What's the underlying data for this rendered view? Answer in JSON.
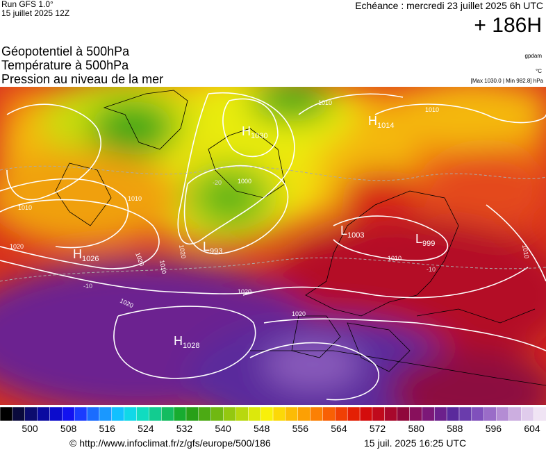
{
  "header": {
    "run_label": "Run GFS 1.0°",
    "run_date": "15 juillet 2025 12Z",
    "echeance": "Echéance : mercredi 23 juillet 2025 6h UTC",
    "lead": "+ 186H"
  },
  "fields": [
    "Géopotentiel à 500hPa",
    "Température à 500hPa",
    "Pression au niveau de la mer"
  ],
  "units": {
    "geopotential": "gpdam",
    "temperature": "°C",
    "maxmin": "[Max 1030.0 | Min 982.8] hPa"
  },
  "map": {
    "pressure_centers": [
      {
        "type": "H",
        "value": "1030"
      },
      {
        "type": "H",
        "value": "1014"
      },
      {
        "type": "H",
        "value": "1026"
      },
      {
        "type": "H",
        "value": "1028"
      },
      {
        "type": "L",
        "value": "993"
      },
      {
        "type": "L",
        "value": "999"
      },
      {
        "type": "L",
        "value": "1003"
      }
    ],
    "isobar_labels": [
      "1010",
      "1010",
      "1010",
      "1000",
      "1020",
      "1020",
      "1020",
      "1020",
      "1020",
      "1020",
      "1010",
      "1010",
      "1010",
      "1010"
    ],
    "temperature_labels": [
      "-20",
      "-10",
      "-10"
    ]
  },
  "colorbar": {
    "labels": [
      "500",
      "508",
      "516",
      "524",
      "532",
      "540",
      "548",
      "556",
      "564",
      "572",
      "580",
      "588",
      "596",
      "604"
    ],
    "colors": [
      "#000000",
      "#0a0a3c",
      "#0c0c6e",
      "#0a0aa0",
      "#0c0ccc",
      "#1212f0",
      "#1a3cff",
      "#1a6cff",
      "#1a98ff",
      "#12c0ff",
      "#10d8e8",
      "#10dcc0",
      "#12cc90",
      "#14bc60",
      "#18ac30",
      "#28a018",
      "#4caa14",
      "#70b812",
      "#94c810",
      "#b8d80e",
      "#dce80c",
      "#f8f00a",
      "#fcd808",
      "#fcbc06",
      "#fca004",
      "#fc8004",
      "#f86004",
      "#f04004",
      "#e42004",
      "#d40c0c",
      "#c00a1c",
      "#a8082c",
      "#90083c",
      "#88105c",
      "#7c1878",
      "#6c208c",
      "#5a2a9c",
      "#6a3cac",
      "#8050bc",
      "#9a6cc8",
      "#b48cd4",
      "#ccaee0",
      "#e0ccec",
      "#f0e4f4"
    ]
  },
  "footer": {
    "copyright": "© http://www.infoclimat.fr/z/gfs/europe/500/186",
    "generated": "15 juil. 2025 16:25 UTC"
  }
}
